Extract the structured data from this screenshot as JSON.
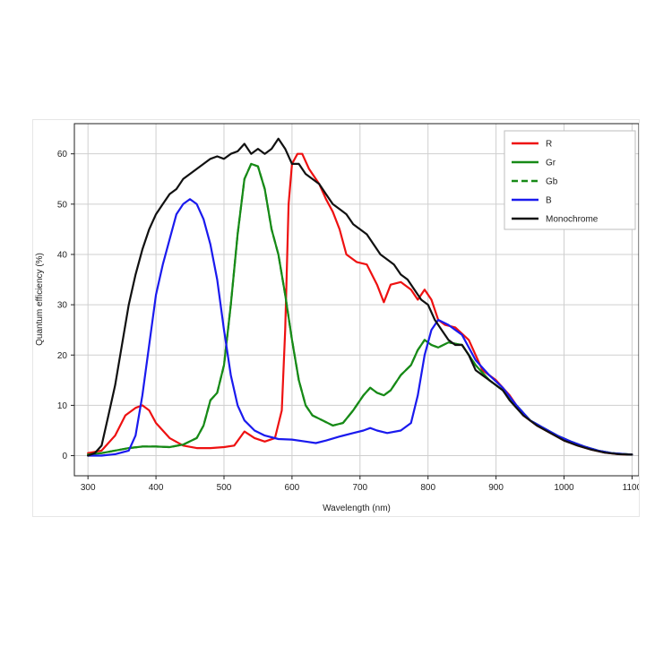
{
  "chart_data": {
    "type": "line",
    "xlabel": "Wavelength (nm)",
    "ylabel": "Quantum efficiency (%)",
    "xlim": [
      280,
      1110
    ],
    "ylim": [
      -4,
      66
    ],
    "xticks": [
      300,
      400,
      500,
      600,
      700,
      800,
      900,
      1000,
      1100
    ],
    "yticks": [
      0,
      10,
      20,
      30,
      40,
      50,
      60
    ],
    "grid": true,
    "legend_position": "top-right",
    "series": [
      {
        "name": "R",
        "color": "#ee1111",
        "dash": "solid",
        "points": [
          [
            300,
            0.5
          ],
          [
            320,
            1
          ],
          [
            340,
            4
          ],
          [
            355,
            8
          ],
          [
            370,
            9.5
          ],
          [
            380,
            10
          ],
          [
            390,
            9
          ],
          [
            400,
            6.5
          ],
          [
            420,
            3.5
          ],
          [
            440,
            2
          ],
          [
            460,
            1.5
          ],
          [
            480,
            1.5
          ],
          [
            500,
            1.7
          ],
          [
            515,
            2
          ],
          [
            530,
            4.8
          ],
          [
            545,
            3.5
          ],
          [
            560,
            2.8
          ],
          [
            575,
            3.5
          ],
          [
            585,
            9
          ],
          [
            590,
            25
          ],
          [
            595,
            50
          ],
          [
            600,
            58
          ],
          [
            608,
            60
          ],
          [
            615,
            60
          ],
          [
            625,
            57
          ],
          [
            640,
            54
          ],
          [
            650,
            51
          ],
          [
            660,
            48.5
          ],
          [
            670,
            45
          ],
          [
            680,
            40
          ],
          [
            695,
            38.5
          ],
          [
            710,
            38
          ],
          [
            725,
            34
          ],
          [
            735,
            30.5
          ],
          [
            745,
            34
          ],
          [
            760,
            34.5
          ],
          [
            775,
            33
          ],
          [
            785,
            31
          ],
          [
            795,
            33
          ],
          [
            805,
            31
          ],
          [
            815,
            27
          ],
          [
            825,
            26
          ],
          [
            840,
            25.5
          ],
          [
            860,
            23
          ],
          [
            880,
            17
          ],
          [
            900,
            15
          ],
          [
            920,
            12
          ],
          [
            940,
            8
          ],
          [
            960,
            6
          ],
          [
            980,
            4.5
          ],
          [
            1000,
            3
          ],
          [
            1020,
            2
          ],
          [
            1040,
            1.2
          ],
          [
            1060,
            0.6
          ],
          [
            1080,
            0.3
          ],
          [
            1100,
            0.2
          ]
        ]
      },
      {
        "name": "Gr",
        "color": "#178a17",
        "dash": "solid",
        "points": [
          [
            300,
            0.2
          ],
          [
            320,
            0.5
          ],
          [
            340,
            1
          ],
          [
            360,
            1.5
          ],
          [
            380,
            1.8
          ],
          [
            400,
            1.8
          ],
          [
            420,
            1.7
          ],
          [
            440,
            2.2
          ],
          [
            460,
            3.5
          ],
          [
            470,
            6
          ],
          [
            480,
            11
          ],
          [
            490,
            12.5
          ],
          [
            500,
            18
          ],
          [
            510,
            30
          ],
          [
            520,
            44
          ],
          [
            530,
            55
          ],
          [
            540,
            58
          ],
          [
            550,
            57.5
          ],
          [
            560,
            53
          ],
          [
            570,
            45
          ],
          [
            580,
            40
          ],
          [
            590,
            32
          ],
          [
            600,
            23
          ],
          [
            610,
            15
          ],
          [
            620,
            10
          ],
          [
            630,
            8
          ],
          [
            645,
            7
          ],
          [
            660,
            6
          ],
          [
            675,
            6.5
          ],
          [
            690,
            9
          ],
          [
            705,
            12
          ],
          [
            715,
            13.5
          ],
          [
            725,
            12.5
          ],
          [
            735,
            12
          ],
          [
            745,
            13
          ],
          [
            760,
            16
          ],
          [
            775,
            18
          ],
          [
            785,
            21
          ],
          [
            795,
            23
          ],
          [
            805,
            22
          ],
          [
            815,
            21.5
          ],
          [
            830,
            22.5
          ],
          [
            850,
            22
          ],
          [
            870,
            18
          ],
          [
            890,
            15
          ],
          [
            910,
            13
          ],
          [
            930,
            10
          ],
          [
            950,
            7
          ],
          [
            970,
            5.5
          ],
          [
            990,
            4
          ],
          [
            1010,
            2.8
          ],
          [
            1030,
            1.8
          ],
          [
            1050,
            1
          ],
          [
            1070,
            0.5
          ],
          [
            1090,
            0.3
          ],
          [
            1100,
            0.2
          ]
        ]
      },
      {
        "name": "Gb",
        "color": "#178a17",
        "dash": "dashed",
        "points": [
          [
            300,
            0.2
          ],
          [
            320,
            0.5
          ],
          [
            340,
            1
          ],
          [
            360,
            1.5
          ],
          [
            380,
            1.8
          ],
          [
            400,
            1.8
          ],
          [
            420,
            1.7
          ],
          [
            440,
            2.2
          ],
          [
            460,
            3.5
          ],
          [
            470,
            6
          ],
          [
            480,
            11
          ],
          [
            490,
            12.5
          ],
          [
            500,
            18
          ],
          [
            510,
            30
          ],
          [
            520,
            44
          ],
          [
            530,
            55
          ],
          [
            540,
            58
          ],
          [
            550,
            57.5
          ],
          [
            560,
            53
          ],
          [
            570,
            45
          ],
          [
            580,
            40
          ],
          [
            590,
            32
          ],
          [
            600,
            23
          ],
          [
            610,
            15
          ],
          [
            620,
            10
          ],
          [
            630,
            8
          ],
          [
            645,
            7
          ],
          [
            660,
            6
          ],
          [
            675,
            6.5
          ],
          [
            690,
            9
          ],
          [
            705,
            12
          ],
          [
            715,
            13.5
          ],
          [
            725,
            12.5
          ],
          [
            735,
            12
          ],
          [
            745,
            13
          ],
          [
            760,
            16
          ],
          [
            775,
            18
          ],
          [
            785,
            21
          ],
          [
            795,
            23
          ],
          [
            805,
            22
          ],
          [
            815,
            21.5
          ],
          [
            830,
            22.5
          ],
          [
            850,
            22
          ],
          [
            870,
            18
          ],
          [
            890,
            15
          ],
          [
            910,
            13
          ],
          [
            930,
            10
          ],
          [
            950,
            7
          ],
          [
            970,
            5.5
          ],
          [
            990,
            4
          ],
          [
            1010,
            2.8
          ],
          [
            1030,
            1.8
          ],
          [
            1050,
            1
          ],
          [
            1070,
            0.5
          ],
          [
            1090,
            0.3
          ],
          [
            1100,
            0.2
          ]
        ]
      },
      {
        "name": "B",
        "color": "#1a1aee",
        "dash": "solid",
        "points": [
          [
            300,
            0
          ],
          [
            320,
            0
          ],
          [
            340,
            0.3
          ],
          [
            360,
            1
          ],
          [
            370,
            4
          ],
          [
            380,
            12
          ],
          [
            390,
            22
          ],
          [
            400,
            32
          ],
          [
            410,
            38
          ],
          [
            420,
            43
          ],
          [
            430,
            48
          ],
          [
            440,
            50
          ],
          [
            450,
            51
          ],
          [
            460,
            50
          ],
          [
            470,
            47
          ],
          [
            480,
            42
          ],
          [
            490,
            35
          ],
          [
            500,
            25
          ],
          [
            510,
            16
          ],
          [
            520,
            10
          ],
          [
            530,
            7
          ],
          [
            545,
            5
          ],
          [
            560,
            4
          ],
          [
            580,
            3.3
          ],
          [
            600,
            3.2
          ],
          [
            620,
            2.8
          ],
          [
            635,
            2.5
          ],
          [
            650,
            3
          ],
          [
            670,
            3.8
          ],
          [
            690,
            4.5
          ],
          [
            705,
            5
          ],
          [
            715,
            5.5
          ],
          [
            725,
            5
          ],
          [
            740,
            4.5
          ],
          [
            760,
            5
          ],
          [
            775,
            6.5
          ],
          [
            785,
            12
          ],
          [
            795,
            20
          ],
          [
            805,
            25
          ],
          [
            815,
            27
          ],
          [
            830,
            26
          ],
          [
            850,
            24
          ],
          [
            870,
            19
          ],
          [
            890,
            16
          ],
          [
            910,
            13.5
          ],
          [
            930,
            10
          ],
          [
            950,
            7
          ],
          [
            970,
            5.5
          ],
          [
            990,
            4
          ],
          [
            1010,
            2.8
          ],
          [
            1030,
            1.8
          ],
          [
            1050,
            1
          ],
          [
            1070,
            0.5
          ],
          [
            1090,
            0.3
          ],
          [
            1100,
            0.2
          ]
        ]
      },
      {
        "name": "Monochrome",
        "color": "#111111",
        "dash": "solid",
        "points": [
          [
            300,
            0
          ],
          [
            310,
            0.5
          ],
          [
            320,
            2
          ],
          [
            330,
            8
          ],
          [
            340,
            14
          ],
          [
            350,
            22
          ],
          [
            360,
            30
          ],
          [
            370,
            36
          ],
          [
            380,
            41
          ],
          [
            390,
            45
          ],
          [
            400,
            48
          ],
          [
            410,
            50
          ],
          [
            420,
            52
          ],
          [
            430,
            53
          ],
          [
            440,
            55
          ],
          [
            450,
            56
          ],
          [
            460,
            57
          ],
          [
            470,
            58
          ],
          [
            480,
            59
          ],
          [
            490,
            59.5
          ],
          [
            500,
            59
          ],
          [
            510,
            60
          ],
          [
            520,
            60.5
          ],
          [
            530,
            62
          ],
          [
            540,
            60
          ],
          [
            550,
            61
          ],
          [
            560,
            60
          ],
          [
            570,
            61
          ],
          [
            580,
            63
          ],
          [
            590,
            61
          ],
          [
            600,
            58
          ],
          [
            610,
            58
          ],
          [
            620,
            56
          ],
          [
            630,
            55
          ],
          [
            640,
            54
          ],
          [
            650,
            52
          ],
          [
            660,
            50
          ],
          [
            670,
            49
          ],
          [
            680,
            48
          ],
          [
            690,
            46
          ],
          [
            700,
            45
          ],
          [
            710,
            44
          ],
          [
            720,
            42
          ],
          [
            730,
            40
          ],
          [
            740,
            39
          ],
          [
            750,
            38
          ],
          [
            760,
            36
          ],
          [
            770,
            35
          ],
          [
            780,
            33
          ],
          [
            790,
            31
          ],
          [
            800,
            30
          ],
          [
            810,
            27
          ],
          [
            820,
            25
          ],
          [
            830,
            23
          ],
          [
            840,
            22
          ],
          [
            850,
            22
          ],
          [
            860,
            20
          ],
          [
            870,
            17
          ],
          [
            880,
            16
          ],
          [
            890,
            15
          ],
          [
            900,
            14
          ],
          [
            910,
            13
          ],
          [
            920,
            11
          ],
          [
            940,
            8
          ],
          [
            960,
            6
          ],
          [
            980,
            4.5
          ],
          [
            1000,
            3
          ],
          [
            1020,
            2
          ],
          [
            1040,
            1.2
          ],
          [
            1060,
            0.6
          ],
          [
            1080,
            0.3
          ],
          [
            1100,
            0.2
          ]
        ]
      }
    ]
  }
}
